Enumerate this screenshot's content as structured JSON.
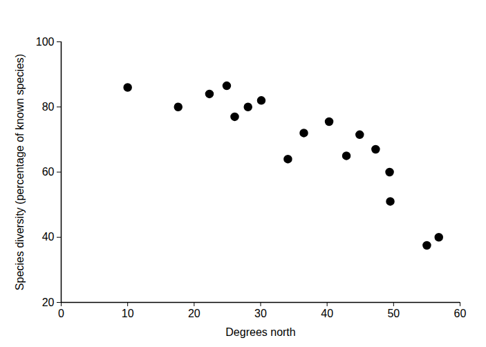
{
  "chart_data": {
    "type": "scatter",
    "xlabel": "Degrees north",
    "ylabel": "Species diversity (percentage of known species)",
    "x": [
      10,
      17.6,
      22.3,
      24.9,
      26.1,
      28.1,
      30.1,
      34.1,
      36.5,
      40.3,
      42.9,
      44.9,
      47.3,
      49.4,
      49.5,
      55,
      56.8
    ],
    "values": [
      86,
      80,
      84,
      86.5,
      77,
      80,
      82,
      64,
      72,
      75.5,
      65,
      71.5,
      67,
      60,
      51,
      37.5,
      40
    ],
    "color": "#000000",
    "marker": "circle",
    "xlim": [
      0,
      60
    ],
    "xticks": [
      0,
      10,
      20,
      30,
      40,
      50,
      60
    ],
    "ylim": [
      20,
      100
    ],
    "yticks": [
      20,
      40,
      60,
      80,
      100
    ],
    "grid": false
  }
}
